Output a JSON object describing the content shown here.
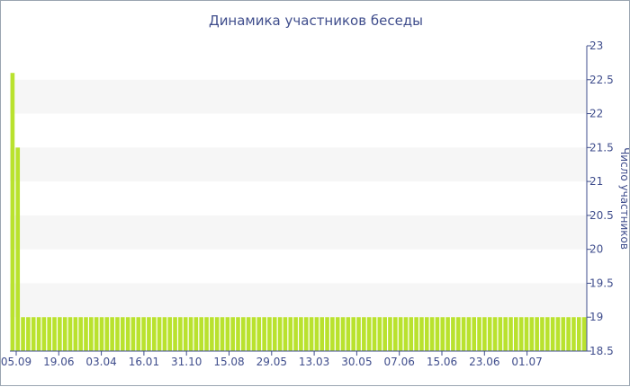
{
  "chart_data": {
    "type": "bar",
    "title": "Динамика участников беседы",
    "ylabel": "Число участников",
    "y_axis_position": "right",
    "ylim": [
      18.5,
      23
    ],
    "y_ticks": [
      "18.5",
      "19",
      "19.5",
      "20",
      "20.5",
      "21",
      "21.5",
      "22",
      "22.5",
      "23"
    ],
    "x_tick_labels": [
      "05.09",
      "19.06",
      "03.04",
      "16.01",
      "31.10",
      "15.08",
      "29.05",
      "13.03",
      "30.05",
      "07.06",
      "15.06",
      "23.06",
      "01.07"
    ],
    "grid": "horizontal alternating bands",
    "bar_color": "#b9e22e",
    "series": [
      {
        "values": [
          22.6,
          21.5,
          19,
          19,
          19,
          19,
          19,
          19,
          19,
          19,
          19,
          19,
          19,
          19,
          19,
          19,
          19,
          19,
          19,
          19,
          19,
          19,
          19,
          19,
          19,
          19,
          19,
          19,
          19,
          19,
          19,
          19,
          19,
          19,
          19,
          19,
          19,
          19,
          19,
          19,
          19,
          19,
          19,
          19,
          19,
          19,
          19,
          19,
          19,
          19,
          19,
          19,
          19,
          19,
          19,
          19,
          19,
          19,
          19,
          19,
          19,
          19,
          19,
          19,
          19,
          19,
          19,
          19,
          19,
          19,
          19,
          19,
          19,
          19,
          19,
          19,
          19,
          19,
          19,
          19,
          19,
          19,
          19,
          19,
          19,
          19,
          19,
          19,
          19,
          19,
          19,
          19,
          19,
          19,
          19,
          19,
          19,
          19,
          19,
          19,
          19,
          19,
          19,
          19,
          19,
          19,
          19,
          19,
          19,
          19
        ]
      }
    ]
  }
}
